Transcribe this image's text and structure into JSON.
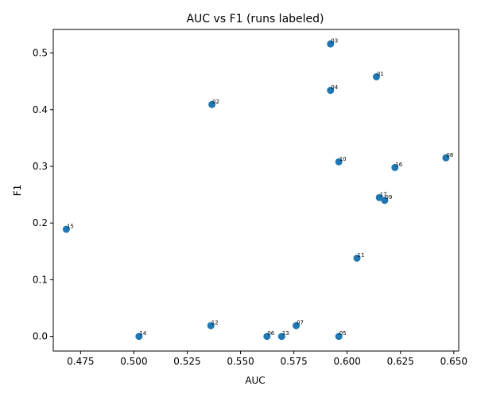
{
  "chart_data": {
    "type": "scatter",
    "title": "AUC vs F1 (runs labeled)",
    "xlabel": "AUC",
    "ylabel": "F1",
    "xlim": [
      0.4622,
      0.6523
    ],
    "ylim": [
      -0.0258,
      0.5415
    ],
    "xticks": [
      0.475,
      0.5,
      0.525,
      0.55,
      0.575,
      0.6,
      0.625,
      0.65
    ],
    "xtick_labels": [
      "0.475",
      "0.500",
      "0.525",
      "0.550",
      "0.575",
      "0.600",
      "0.625",
      "0.650"
    ],
    "yticks": [
      0.0,
      0.1,
      0.2,
      0.3,
      0.4,
      0.5
    ],
    "ytick_labels": [
      "0.0",
      "0.1",
      "0.2",
      "0.3",
      "0.4",
      "0.5"
    ],
    "grid": false,
    "marker_color": "#1f77b4",
    "points": [
      {
        "label": "01",
        "x": 0.6137,
        "y": 0.458
      },
      {
        "label": "02",
        "x": 0.5366,
        "y": 0.409
      },
      {
        "label": "03",
        "x": 0.5922,
        "y": 0.516
      },
      {
        "label": "04",
        "x": 0.5922,
        "y": 0.434
      },
      {
        "label": "05",
        "x": 0.5961,
        "y": 0.0
      },
      {
        "label": "06",
        "x": 0.5624,
        "y": 0.0
      },
      {
        "label": "07",
        "x": 0.5761,
        "y": 0.019
      },
      {
        "label": "08",
        "x": 0.6463,
        "y": 0.315
      },
      {
        "label": "09",
        "x": 0.6176,
        "y": 0.24
      },
      {
        "label": "10",
        "x": 0.5961,
        "y": 0.308
      },
      {
        "label": "11",
        "x": 0.6046,
        "y": 0.138
      },
      {
        "label": "12",
        "x": 0.5361,
        "y": 0.019
      },
      {
        "label": "13",
        "x": 0.5693,
        "y": 0.0
      },
      {
        "label": "14",
        "x": 0.5024,
        "y": 0.0
      },
      {
        "label": "15",
        "x": 0.4683,
        "y": 0.189
      },
      {
        "label": "16",
        "x": 0.6224,
        "y": 0.298
      },
      {
        "label": "17",
        "x": 0.6151,
        "y": 0.245
      }
    ]
  }
}
